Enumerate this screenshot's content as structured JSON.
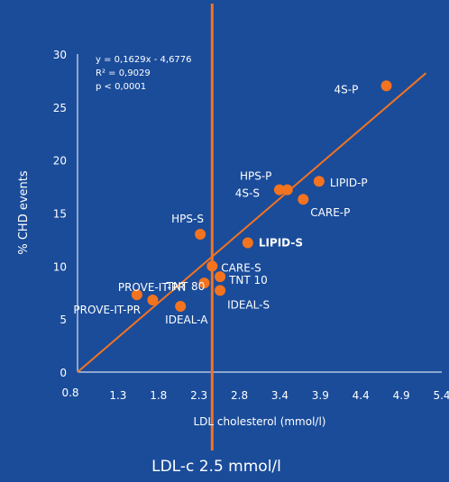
{
  "colors": {
    "background": "#1a4c9a",
    "axis": "#ffffff",
    "marker": "#f4731f",
    "line": "#f4731f",
    "vline": "#f4731f",
    "text": "#ffffff"
  },
  "chart_data": {
    "type": "scatter",
    "xlabel": "LDL cholesterol (mmol/l)",
    "ylabel": "% CHD events",
    "xlim": [
      0.8,
      5.4
    ],
    "ylim": [
      0,
      30
    ],
    "x_ticks": [
      "0.8",
      "1.3",
      "1.8",
      "2.3",
      "2.8",
      "3.4",
      "3.9",
      "4.4",
      "4.9",
      "5.4"
    ],
    "y_ticks": [
      "0",
      "5",
      "10",
      "15",
      "20",
      "25",
      "30"
    ],
    "regression": {
      "equation": "y = 0,1629x - 4,6776",
      "r2": "R² = 0,9029",
      "p": "p < 0,0001",
      "from": [
        0.8,
        0
      ],
      "to": [
        5.2,
        28.2
      ]
    },
    "reference_line": {
      "x": 2.5,
      "label": "LDL-c 2.5 mmol/l"
    },
    "points": [
      {
        "name": "4S-P",
        "x": 4.7,
        "y": 27
      },
      {
        "name": "HPS-P",
        "x": 3.35,
        "y": 17.2
      },
      {
        "name": "4S-S",
        "x": 3.45,
        "y": 17.2
      },
      {
        "name": "LIPID-P",
        "x": 3.85,
        "y": 18
      },
      {
        "name": "CARE-P",
        "x": 3.65,
        "y": 16.3
      },
      {
        "name": "HPS-S",
        "x": 2.35,
        "y": 13
      },
      {
        "name": "LIPID-S",
        "x": 2.95,
        "y": 12.2
      },
      {
        "name": "CARE-S",
        "x": 2.5,
        "y": 10
      },
      {
        "name": "TNT 10",
        "x": 2.6,
        "y": 9
      },
      {
        "name": "TNT 80",
        "x": 2.4,
        "y": 8.4
      },
      {
        "name": "IDEAL-S",
        "x": 2.6,
        "y": 7.7
      },
      {
        "name": "PROVE-IT-PR",
        "x": 1.55,
        "y": 7.3
      },
      {
        "name": "PROVE-IT-PR",
        "x": 1.75,
        "y": 6.8
      },
      {
        "name": "IDEAL-A",
        "x": 2.1,
        "y": 6.2
      }
    ]
  }
}
